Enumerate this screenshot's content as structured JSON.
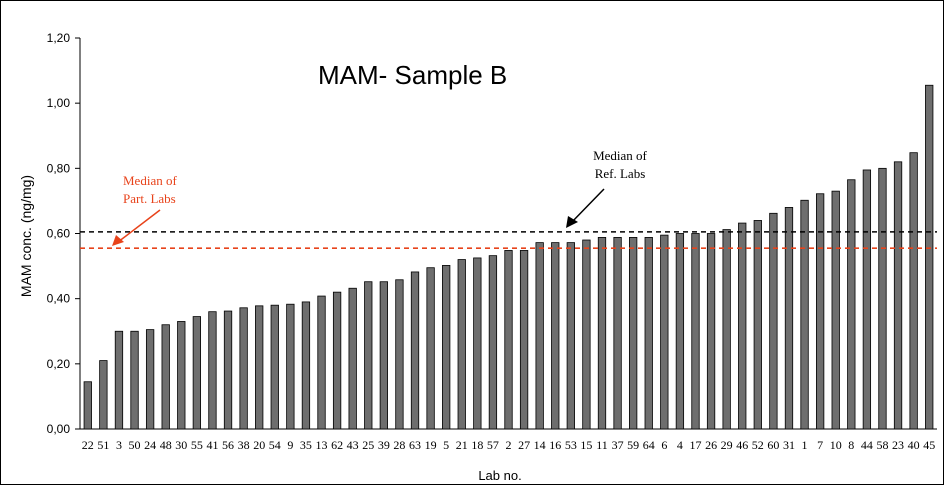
{
  "chart_data": {
    "type": "bar",
    "title": "MAM- Sample B",
    "xlabel": "Lab no.",
    "ylabel": "MAM conc. (ng/mg)",
    "ylim": [
      0,
      1.2
    ],
    "yticks": [
      "0,00",
      "0,20",
      "0,40",
      "0,60",
      "0,80",
      "1,00",
      "1,20"
    ],
    "grid": false,
    "categories": [
      "22",
      "51",
      "3",
      "50",
      "24",
      "48",
      "30",
      "55",
      "41",
      "56",
      "38",
      "20",
      "54",
      "9",
      "35",
      "13",
      "62",
      "43",
      "25",
      "39",
      "28",
      "63",
      "19",
      "5",
      "21",
      "18",
      "57",
      "2",
      "27",
      "14",
      "16",
      "53",
      "15",
      "11",
      "37",
      "59",
      "64",
      "6",
      "4",
      "17",
      "26",
      "29",
      "46",
      "52",
      "60",
      "31",
      "1",
      "7",
      "10",
      "8",
      "44",
      "58",
      "23",
      "40",
      "45"
    ],
    "values": [
      0.145,
      0.21,
      0.3,
      0.3,
      0.305,
      0.32,
      0.33,
      0.345,
      0.36,
      0.362,
      0.372,
      0.378,
      0.38,
      0.383,
      0.39,
      0.408,
      0.42,
      0.432,
      0.452,
      0.452,
      0.458,
      0.482,
      0.495,
      0.502,
      0.52,
      0.525,
      0.532,
      0.548,
      0.548,
      0.572,
      0.572,
      0.572,
      0.58,
      0.588,
      0.588,
      0.588,
      0.588,
      0.595,
      0.6,
      0.6,
      0.6,
      0.612,
      0.632,
      0.64,
      0.662,
      0.68,
      0.702,
      0.722,
      0.73,
      0.765,
      0.795,
      0.8,
      0.82,
      0.848,
      1.055
    ],
    "bar_color": "#6e6e6e",
    "reference_lines": [
      {
        "label_lines": [
          "Median of",
          "Ref. Labs"
        ],
        "value": 0.605,
        "color": "#000000"
      },
      {
        "label_lines": [
          "Median of",
          "Part. Labs"
        ],
        "value": 0.555,
        "color": "#e8431b"
      }
    ],
    "annotation_label_color": "#e8431b"
  }
}
